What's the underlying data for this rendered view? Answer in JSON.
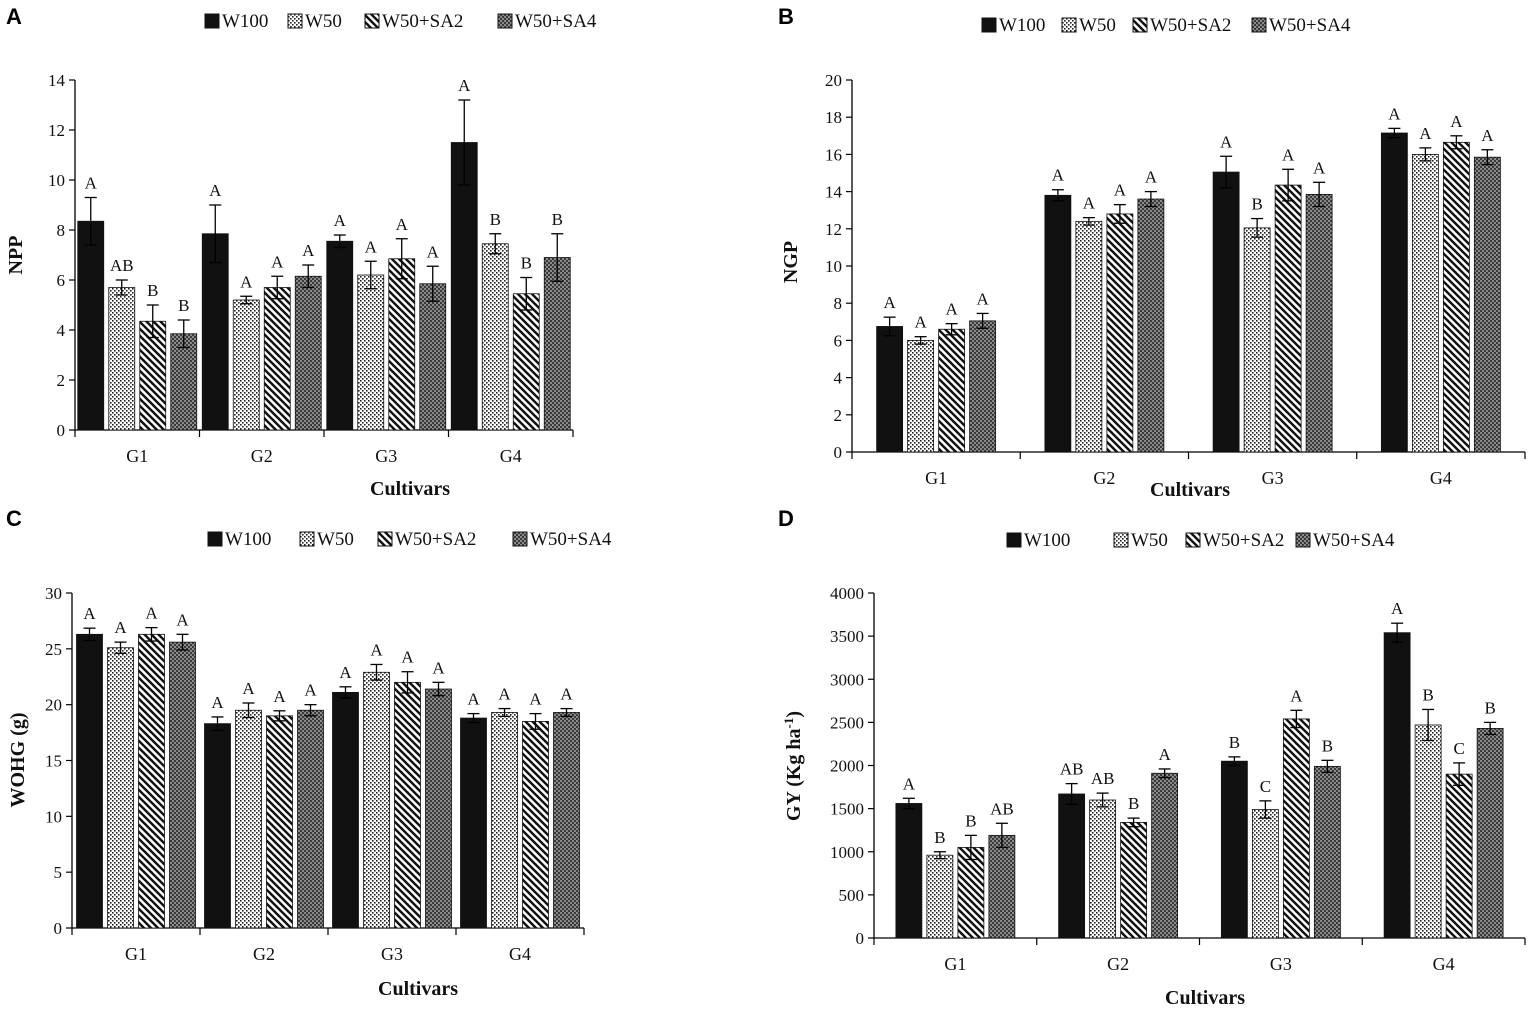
{
  "figure": {
    "legend": [
      "W100",
      "W50",
      "W50+SA2",
      "W50+SA4"
    ],
    "colors": {
      "bar_dark": "#111111",
      "grid": "#000000",
      "background": "#ffffff"
    }
  },
  "chart_data": [
    {
      "panel": "A",
      "type": "bar",
      "title": "",
      "xlabel": "Cultivars",
      "ylabel": "NPP",
      "ylim": [
        0,
        14
      ],
      "ytick_step": 2,
      "categories": [
        "G1",
        "G2",
        "G3",
        "G4"
      ],
      "series": [
        {
          "name": "W100",
          "values": [
            8.35,
            7.85,
            7.55,
            11.5
          ],
          "errors": [
            0.95,
            1.15,
            0.25,
            1.7
          ],
          "letters": [
            "A",
            "A",
            "A",
            "A"
          ]
        },
        {
          "name": "W50",
          "values": [
            5.7,
            5.2,
            6.2,
            7.45
          ],
          "errors": [
            0.3,
            0.15,
            0.55,
            0.4
          ],
          "letters": [
            "AB",
            "A",
            "A",
            "B"
          ]
        },
        {
          "name": "W50+SA2",
          "values": [
            4.35,
            5.7,
            6.85,
            5.45
          ],
          "errors": [
            0.65,
            0.45,
            0.8,
            0.65
          ],
          "letters": [
            "B",
            "A",
            "A",
            "B"
          ]
        },
        {
          "name": "W50+SA4",
          "values": [
            3.85,
            6.15,
            5.85,
            6.9
          ],
          "errors": [
            0.55,
            0.45,
            0.7,
            0.95
          ],
          "letters": [
            "B",
            "A",
            "A",
            "B"
          ]
        }
      ]
    },
    {
      "panel": "B",
      "type": "bar",
      "title": "",
      "xlabel": "Cultivars",
      "ylabel": "NGP",
      "ylim": [
        0,
        20
      ],
      "ytick_step": 2,
      "categories": [
        "G1",
        "G2",
        "G3",
        "G4"
      ],
      "series": [
        {
          "name": "W100",
          "values": [
            6.75,
            13.8,
            15.05,
            17.15
          ],
          "errors": [
            0.5,
            0.3,
            0.85,
            0.25
          ],
          "letters": [
            "A",
            "A",
            "A",
            "A"
          ]
        },
        {
          "name": "W50",
          "values": [
            6.0,
            12.4,
            12.05,
            16.0
          ],
          "errors": [
            0.2,
            0.2,
            0.5,
            0.35
          ],
          "letters": [
            "A",
            "A",
            "B",
            "A"
          ]
        },
        {
          "name": "W50+SA2",
          "values": [
            6.6,
            12.8,
            14.35,
            16.65
          ],
          "errors": [
            0.3,
            0.5,
            0.85,
            0.35
          ],
          "letters": [
            "A",
            "A",
            "A",
            "A"
          ]
        },
        {
          "name": "W50+SA4",
          "values": [
            7.05,
            13.6,
            13.85,
            15.85
          ],
          "errors": [
            0.4,
            0.4,
            0.65,
            0.4
          ],
          "letters": [
            "A",
            "A",
            "A",
            "A"
          ]
        }
      ]
    },
    {
      "panel": "C",
      "type": "bar",
      "title": "",
      "xlabel": "Cultivars",
      "ylabel": "WOHG (g)",
      "ylim": [
        0,
        30
      ],
      "ytick_step": 5,
      "categories": [
        "G1",
        "G2",
        "G3",
        "G4"
      ],
      "series": [
        {
          "name": "W100",
          "values": [
            26.3,
            18.3,
            21.1,
            18.8
          ],
          "errors": [
            0.55,
            0.6,
            0.5,
            0.4
          ],
          "letters": [
            "A",
            "A",
            "A",
            "A"
          ]
        },
        {
          "name": "W50",
          "values": [
            25.1,
            19.5,
            22.9,
            19.3
          ],
          "errors": [
            0.5,
            0.65,
            0.7,
            0.35
          ],
          "letters": [
            "A",
            "A",
            "A",
            "A"
          ]
        },
        {
          "name": "W50+SA2",
          "values": [
            26.3,
            19.0,
            22.0,
            18.5
          ],
          "errors": [
            0.6,
            0.45,
            0.95,
            0.7
          ],
          "letters": [
            "A",
            "A",
            "A",
            "A"
          ]
        },
        {
          "name": "W50+SA4",
          "values": [
            25.6,
            19.5,
            21.4,
            19.3
          ],
          "errors": [
            0.7,
            0.5,
            0.6,
            0.35
          ],
          "letters": [
            "A",
            "A",
            "A",
            "A"
          ]
        }
      ]
    },
    {
      "panel": "D",
      "type": "bar",
      "title": "",
      "xlabel": "Cultivars",
      "ylabel": "GY (Kg ha-1)",
      "ylabel_main": "GY (Kg ha",
      "ylabel_sup": "-1",
      "ylabel_end": ")",
      "ylim": [
        0,
        4000
      ],
      "ytick_step": 500,
      "categories": [
        "G1",
        "G2",
        "G3",
        "G4"
      ],
      "series": [
        {
          "name": "W100",
          "values": [
            1560,
            1670,
            2050,
            3540
          ],
          "errors": [
            60,
            120,
            50,
            110
          ],
          "letters": [
            "A",
            "AB",
            "B",
            "A"
          ]
        },
        {
          "name": "W50",
          "values": [
            960,
            1600,
            1490,
            2470
          ],
          "errors": [
            40,
            80,
            100,
            180
          ],
          "letters": [
            "B",
            "AB",
            "C",
            "B"
          ]
        },
        {
          "name": "W50+SA2",
          "values": [
            1050,
            1340,
            2540,
            1900
          ],
          "errors": [
            140,
            50,
            100,
            130
          ],
          "letters": [
            "B",
            "B",
            "A",
            "C"
          ]
        },
        {
          "name": "W50+SA4",
          "values": [
            1190,
            1910,
            1990,
            2430
          ],
          "errors": [
            140,
            50,
            70,
            70
          ],
          "letters": [
            "AB",
            "A",
            "B",
            "B"
          ]
        }
      ]
    }
  ]
}
